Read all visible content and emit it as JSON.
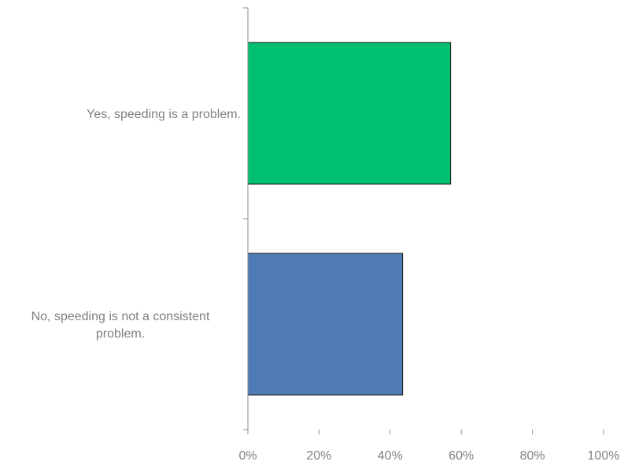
{
  "chart_data": {
    "type": "bar",
    "orientation": "horizontal",
    "title": "",
    "xlabel": "",
    "ylabel": "",
    "categories": [
      [
        "Yes, speeding is a problem."
      ],
      [
        "No, speeding is not a consistent",
        "problem."
      ]
    ],
    "values": [
      0.57,
      0.435
    ],
    "colors": [
      "#00bf6f",
      "#4f7bb5"
    ],
    "xlim": [
      0,
      1
    ],
    "x_ticks": [
      {
        "value": 0,
        "label": "0%"
      },
      {
        "value": 0.2,
        "label": "20%"
      },
      {
        "value": 0.4,
        "label": "40%"
      },
      {
        "value": 0.6,
        "label": "60%"
      },
      {
        "value": 0.8,
        "label": "80%"
      },
      {
        "value": 1,
        "label": "100%"
      }
    ],
    "grid": false,
    "legend": "none"
  }
}
